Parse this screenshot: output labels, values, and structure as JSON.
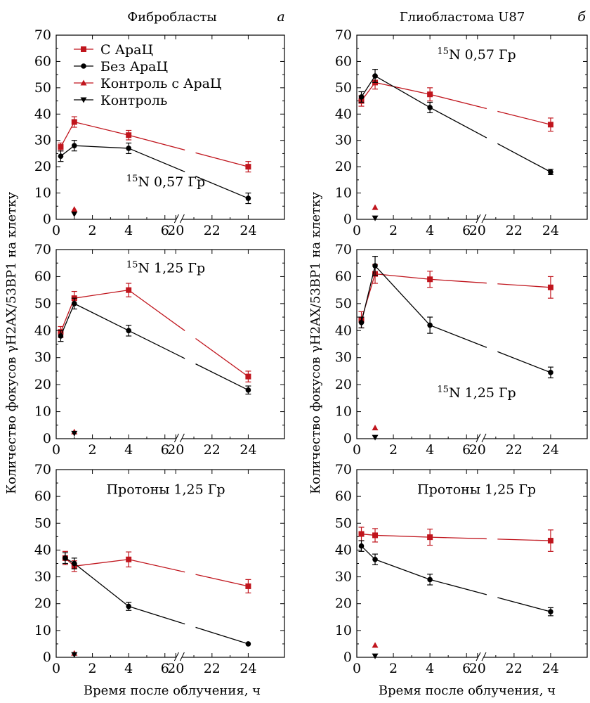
{
  "figure": {
    "ylabel": "Количество фокусов γH2AX/53BP1 на клетку",
    "xlabel_left": "Время после облучения, ч",
    "xlabel_right": "Время после облучения, ч",
    "columns": [
      {
        "title": "Фибробласты",
        "letter": "a"
      },
      {
        "title": "Глиобластома U87",
        "letter": "б"
      }
    ],
    "colors": {
      "with_arac": "#c0151d",
      "without_arac": "#000000"
    }
  },
  "legend": [
    {
      "label": "С АраЦ",
      "marker": "square",
      "color": "#c0151d"
    },
    {
      "label": "Без АраЦ",
      "marker": "circle",
      "color": "#000000"
    },
    {
      "label": "Контроль с АраЦ",
      "marker": "triangle-up",
      "color": "#c0151d"
    },
    {
      "label": "Контроль",
      "marker": "triangle-down",
      "color": "#000000"
    }
  ],
  "chart_data": [
    {
      "type": "line",
      "panel": "fibro-n057",
      "annotation": "15N 0,57 Гр",
      "x_ticks": [
        "0",
        "2",
        "4",
        "6",
        "20",
        "22",
        "24"
      ],
      "y_ticks": [
        "0",
        "10",
        "20",
        "30",
        "40",
        "50",
        "60",
        "70"
      ],
      "ylim": [
        0,
        70
      ],
      "x_axis_break": "between 6 and 20",
      "series": [
        {
          "name": "С АраЦ",
          "marker": "square",
          "color": "#c0151d",
          "points": [
            [
              0.25,
              27.5,
              1.5
            ],
            [
              1,
              37,
              2
            ],
            [
              4,
              32,
              1.8
            ],
            [
              24,
              20,
              2
            ]
          ]
        },
        {
          "name": "Без АраЦ",
          "marker": "circle",
          "color": "#000000",
          "points": [
            [
              0.25,
              24,
              2
            ],
            [
              1,
              28,
              2
            ],
            [
              4,
              27,
              2
            ],
            [
              24,
              8,
              2
            ]
          ]
        },
        {
          "name": "Контроль с АраЦ",
          "marker": "triangle-up",
          "color": "#c0151d",
          "points": [
            [
              1,
              3.8,
              0
            ]
          ]
        },
        {
          "name": "Контроль",
          "marker": "triangle-down",
          "color": "#000000",
          "points": [
            [
              1,
              2,
              0
            ]
          ]
        }
      ]
    },
    {
      "type": "line",
      "panel": "glio-n057",
      "annotation": "15N 0,57 Гр",
      "x_ticks": [
        "0",
        "2",
        "4",
        "6",
        "20",
        "22",
        "24"
      ],
      "y_ticks": [
        "0",
        "10",
        "20",
        "30",
        "40",
        "50",
        "60",
        "70"
      ],
      "ylim": [
        0,
        70
      ],
      "x_axis_break": "between 6 and 20",
      "series": [
        {
          "name": "С АраЦ",
          "marker": "square",
          "color": "#c0151d",
          "points": [
            [
              0.25,
              45,
              2
            ],
            [
              1,
              52,
              2.5
            ],
            [
              4,
              47.5,
              2.5
            ],
            [
              24,
              36,
              2.5
            ]
          ]
        },
        {
          "name": "Без АраЦ",
          "marker": "circle",
          "color": "#000000",
          "points": [
            [
              0.25,
              46.5,
              2
            ],
            [
              1,
              54.5,
              2.5
            ],
            [
              4,
              42.5,
              2
            ],
            [
              24,
              18,
              1
            ]
          ]
        },
        {
          "name": "Контроль с АраЦ",
          "marker": "triangle-up",
          "color": "#c0151d",
          "points": [
            [
              1,
              4.5,
              0
            ]
          ]
        },
        {
          "name": "Контроль",
          "marker": "triangle-down",
          "color": "#000000",
          "points": [
            [
              1,
              0.5,
              0
            ]
          ]
        }
      ]
    },
    {
      "type": "line",
      "panel": "fibro-n125",
      "annotation": "15N 1,25 Гр",
      "x_ticks": [
        "0",
        "2",
        "4",
        "6",
        "20",
        "22",
        "24"
      ],
      "y_ticks": [
        "0",
        "10",
        "20",
        "30",
        "40",
        "50",
        "60",
        "70"
      ],
      "ylim": [
        0,
        70
      ],
      "x_axis_break": "between 6 and 20",
      "series": [
        {
          "name": "С АраЦ",
          "marker": "square",
          "color": "#c0151d",
          "points": [
            [
              0.25,
              39.5,
              2
            ],
            [
              1,
              52,
              2.5
            ],
            [
              4,
              55,
              2.5
            ],
            [
              24,
              23,
              2
            ]
          ]
        },
        {
          "name": "Без АраЦ",
          "marker": "circle",
          "color": "#000000",
          "points": [
            [
              0.25,
              38,
              2
            ],
            [
              1,
              50,
              2
            ],
            [
              4,
              40,
              2
            ],
            [
              24,
              18,
              1.5
            ]
          ]
        },
        {
          "name": "Контроль с АраЦ",
          "marker": "triangle-up",
          "color": "#c0151d",
          "points": [
            [
              1,
              2.5,
              0
            ]
          ]
        },
        {
          "name": "Контроль",
          "marker": "triangle-down",
          "color": "#000000",
          "points": [
            [
              1,
              2,
              0
            ]
          ]
        }
      ]
    },
    {
      "type": "line",
      "panel": "glio-n125",
      "annotation": "15N 1,25 Гр",
      "x_ticks": [
        "0",
        "2",
        "4",
        "6",
        "20",
        "22",
        "24"
      ],
      "y_ticks": [
        "0",
        "10",
        "20",
        "30",
        "40",
        "50",
        "60",
        "70"
      ],
      "ylim": [
        0,
        70
      ],
      "x_axis_break": "between 6 and 20",
      "series": [
        {
          "name": "С АраЦ",
          "marker": "square",
          "color": "#c0151d",
          "points": [
            [
              0.25,
              44,
              3
            ],
            [
              1,
              61,
              3.5
            ],
            [
              4,
              59,
              3
            ],
            [
              24,
              56,
              4
            ]
          ]
        },
        {
          "name": "Без АраЦ",
          "marker": "circle",
          "color": "#000000",
          "points": [
            [
              0.25,
              43,
              2
            ],
            [
              1,
              64,
              3.5
            ],
            [
              4,
              42,
              3
            ],
            [
              24,
              24.5,
              2
            ]
          ]
        },
        {
          "name": "Контроль с АраЦ",
          "marker": "triangle-up",
          "color": "#c0151d",
          "points": [
            [
              1,
              4,
              0
            ]
          ]
        },
        {
          "name": "Контроль",
          "marker": "triangle-down",
          "color": "#000000",
          "points": [
            [
              1,
              0.5,
              0
            ]
          ]
        }
      ]
    },
    {
      "type": "line",
      "panel": "fibro-protons",
      "annotation": "Протоны 1,25 Гр",
      "x_ticks": [
        "0",
        "2",
        "4",
        "6",
        "20",
        "22",
        "24"
      ],
      "y_ticks": [
        "0",
        "10",
        "20",
        "30",
        "40",
        "50",
        "60",
        "70"
      ],
      "ylim": [
        0,
        70
      ],
      "x_axis_break": "between 6 and 20",
      "series": [
        {
          "name": "С АраЦ",
          "marker": "square",
          "color": "#c0151d",
          "points": [
            [
              0.5,
              37,
              2.5
            ],
            [
              1,
              34,
              2
            ],
            [
              4,
              36.5,
              2.8
            ],
            [
              24,
              26.5,
              2.5
            ]
          ]
        },
        {
          "name": "Без АраЦ",
          "marker": "circle",
          "color": "#000000",
          "points": [
            [
              0.5,
              37,
              2
            ],
            [
              1,
              35,
              2
            ],
            [
              4,
              19,
              1.5
            ],
            [
              24,
              5,
              0
            ]
          ]
        },
        {
          "name": "Контроль с АраЦ",
          "marker": "triangle-up",
          "color": "#c0151d",
          "points": [
            [
              1,
              1.5,
              0
            ]
          ]
        },
        {
          "name": "Контроль",
          "marker": "triangle-down",
          "color": "#000000",
          "points": [
            [
              1,
              1,
              0
            ]
          ]
        }
      ]
    },
    {
      "type": "line",
      "panel": "glio-protons",
      "annotation": "Протоны 1,25 Гр",
      "x_ticks": [
        "0",
        "2",
        "4",
        "6",
        "20",
        "22",
        "24"
      ],
      "y_ticks": [
        "0",
        "10",
        "20",
        "30",
        "40",
        "50",
        "60",
        "70"
      ],
      "ylim": [
        0,
        70
      ],
      "x_axis_break": "between 6 and 20",
      "series": [
        {
          "name": "С АраЦ",
          "marker": "square",
          "color": "#c0151d",
          "points": [
            [
              0.25,
              46,
              2.5
            ],
            [
              1,
              45.5,
              2.5
            ],
            [
              4,
              44.8,
              3
            ],
            [
              24,
              43.5,
              4
            ]
          ]
        },
        {
          "name": "Без АраЦ",
          "marker": "circle",
          "color": "#000000",
          "points": [
            [
              0.25,
              41.5,
              2
            ],
            [
              1,
              36.5,
              2
            ],
            [
              4,
              29,
              2
            ],
            [
              24,
              17,
              1.5
            ]
          ]
        },
        {
          "name": "Контроль с АраЦ",
          "marker": "triangle-up",
          "color": "#c0151d",
          "points": [
            [
              1,
              4.5,
              0
            ]
          ]
        },
        {
          "name": "Контроль",
          "marker": "triangle-down",
          "color": "#000000",
          "points": [
            [
              1,
              0.5,
              0
            ]
          ]
        }
      ]
    }
  ]
}
